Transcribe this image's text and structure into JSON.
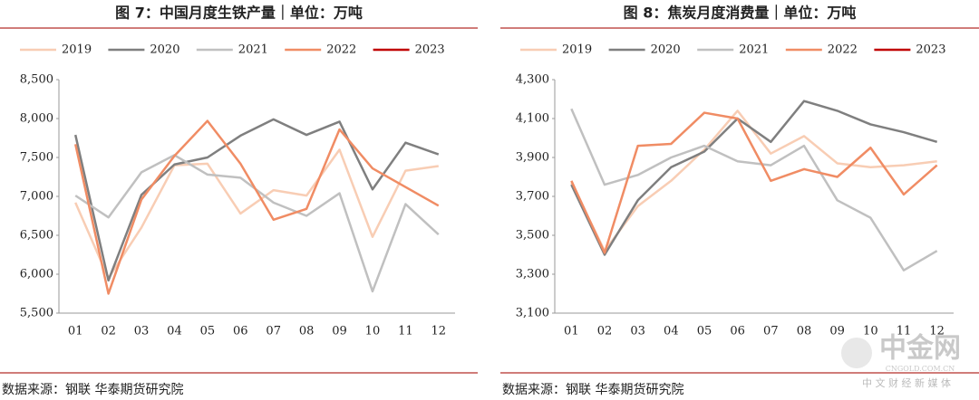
{
  "chart_data": [
    {
      "type": "line",
      "title": "图 7：中国月度生铁产量｜单位：万吨",
      "source": "数据来源：钢联  华泰期货研究院",
      "categories": [
        "01",
        "02",
        "03",
        "04",
        "05",
        "06",
        "07",
        "08",
        "09",
        "10",
        "11",
        "12"
      ],
      "ylim": [
        5500,
        8500
      ],
      "yticks": [
        {
          "value": 5500,
          "label": "5,500"
        },
        {
          "value": 6000,
          "label": "6,000"
        },
        {
          "value": 6500,
          "label": "6,500"
        },
        {
          "value": 7000,
          "label": "7,000"
        },
        {
          "value": 7500,
          "label": "7,500"
        },
        {
          "value": 8000,
          "label": "8,000"
        },
        {
          "value": 8500,
          "label": "8,500"
        }
      ],
      "grid": false,
      "legend": "top",
      "series": [
        {
          "name": "2019",
          "color": "#f8cdb4",
          "values": [
            6920,
            5950,
            6600,
            7400,
            7420,
            6780,
            7080,
            7010,
            7600,
            6480,
            7330,
            7390
          ]
        },
        {
          "name": "2020",
          "color": "#7f7f7f",
          "values": [
            7790,
            5920,
            7020,
            7410,
            7500,
            7780,
            7990,
            7790,
            7960,
            7090,
            7690,
            7540
          ]
        },
        {
          "name": "2021",
          "color": "#c0c0c0",
          "values": [
            7010,
            6730,
            7310,
            7530,
            7280,
            7240,
            6920,
            6750,
            7040,
            5780,
            6900,
            6510
          ]
        },
        {
          "name": "2022",
          "color": "#f08c64",
          "values": [
            7670,
            5750,
            6960,
            7520,
            7970,
            7420,
            6700,
            6840,
            7860,
            7360,
            7120,
            6880
          ]
        },
        {
          "name": "2023",
          "color": "#c00000",
          "values": [
            null,
            null,
            null,
            null,
            null,
            null,
            null,
            null,
            null,
            null,
            null,
            null
          ]
        }
      ]
    },
    {
      "type": "line",
      "title": "图 8：焦炭月度消费量｜单位：万吨",
      "source": "数据来源：钢联  华泰期货研究院",
      "categories": [
        "01",
        "02",
        "03",
        "04",
        "05",
        "06",
        "07",
        "08",
        "09",
        "10",
        "11",
        "12"
      ],
      "ylim": [
        3100,
        4300
      ],
      "yticks": [
        {
          "value": 3100,
          "label": "3,100"
        },
        {
          "value": 3300,
          "label": "3,300"
        },
        {
          "value": 3500,
          "label": "3,500"
        },
        {
          "value": 3700,
          "label": "3,700"
        },
        {
          "value": 3900,
          "label": "3,900"
        },
        {
          "value": 4100,
          "label": "4,100"
        },
        {
          "value": 4300,
          "label": "4,300"
        }
      ],
      "grid": false,
      "legend": "top",
      "series": [
        {
          "name": "2019",
          "color": "#f8cdb4",
          "values": [
            3770,
            3420,
            3650,
            3780,
            3940,
            4140,
            3920,
            4010,
            3870,
            3850,
            3860,
            3880
          ]
        },
        {
          "name": "2020",
          "color": "#7f7f7f",
          "values": [
            3760,
            3400,
            3680,
            3850,
            3930,
            4100,
            3980,
            4190,
            4140,
            4070,
            4030,
            3980
          ]
        },
        {
          "name": "2021",
          "color": "#c0c0c0",
          "values": [
            4150,
            3760,
            3810,
            3900,
            3960,
            3880,
            3860,
            3960,
            3680,
            3590,
            3320,
            3420
          ]
        },
        {
          "name": "2022",
          "color": "#f08c64",
          "values": [
            3780,
            3410,
            3960,
            3970,
            4130,
            4100,
            3780,
            3840,
            3800,
            3950,
            3710,
            3860
          ]
        },
        {
          "name": "2023",
          "color": "#c00000",
          "values": [
            null,
            null,
            null,
            null,
            null,
            null,
            null,
            null,
            null,
            null,
            null,
            null
          ]
        }
      ]
    }
  ],
  "watermark": {
    "name": "中金网",
    "domain": "CNGOLD.COM.CN",
    "slogan": "中 文 财 经 新 媒 体"
  }
}
